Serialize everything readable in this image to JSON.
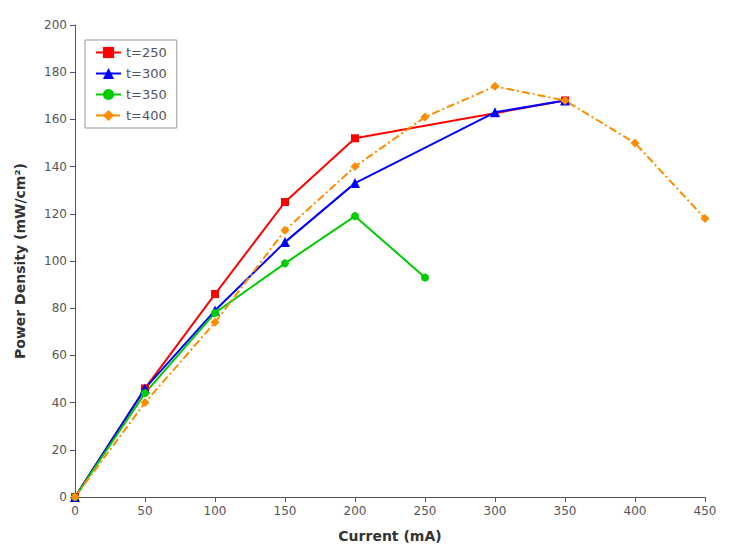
{
  "chart_data": {
    "type": "line",
    "x_label": "Current (mA)",
    "y_label": "Power Density (mW/cm²)",
    "series": [
      {
        "name": "t=250",
        "color": "#ff0000",
        "marker": "square",
        "line_style": "solid",
        "x": [
          0,
          50,
          100,
          150,
          200,
          350
        ],
        "values": [
          0,
          46,
          86,
          125,
          152,
          168
        ]
      },
      {
        "name": "t=300",
        "color": "#0000ff",
        "marker": "triangle",
        "line_style": "solid",
        "x": [
          0,
          50,
          100,
          150,
          200,
          300,
          350
        ],
        "values": [
          0,
          46,
          79,
          108,
          133,
          163,
          168
        ]
      },
      {
        "name": "t=350",
        "color": "#00cc00",
        "marker": "circle",
        "line_style": "solid",
        "x": [
          0,
          50,
          100,
          150,
          200,
          250
        ],
        "values": [
          0,
          44,
          78,
          99,
          119,
          93
        ]
      },
      {
        "name": "t=400",
        "color": "#ff8c00",
        "marker": "diamond",
        "line_style": "dashdot",
        "x": [
          0,
          50,
          100,
          150,
          200,
          250,
          300,
          350,
          400,
          450
        ],
        "values": [
          0,
          40,
          74,
          113,
          140,
          161,
          174,
          168,
          150,
          118
        ]
      }
    ],
    "xlim": [
      0,
      450
    ],
    "xticks": [
      0,
      50,
      100,
      150,
      200,
      250,
      300,
      350,
      400,
      450
    ],
    "ylim": [
      0,
      200
    ],
    "yticks": [
      0,
      20,
      40,
      60,
      80,
      100,
      120,
      140,
      160,
      180,
      200
    ],
    "grid": false,
    "legend": "upper left"
  }
}
